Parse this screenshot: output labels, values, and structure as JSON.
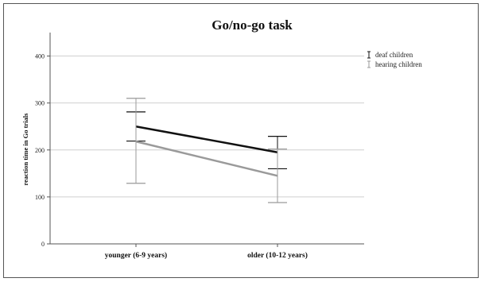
{
  "chart_data": {
    "type": "line",
    "title": "Go/no-go task",
    "xlabel": "",
    "ylabel": "reaction time in Go trials",
    "categories": [
      "younger (6-9 years)",
      "older (10-12 years)"
    ],
    "ylim": [
      0,
      450
    ],
    "yticks": [
      "0",
      "100",
      "200",
      "300",
      "400"
    ],
    "grid": true,
    "legend_position": "top-right",
    "series": [
      {
        "name": "deaf children",
        "color": "#111111",
        "values": [
          250,
          195
        ],
        "error_low": [
          219,
          160
        ],
        "error_high": [
          281,
          229
        ]
      },
      {
        "name": "hearing children",
        "color": "#9a9a9a",
        "values": [
          218,
          145
        ],
        "error_low": [
          129,
          88
        ],
        "error_high": [
          310,
          202
        ]
      }
    ]
  }
}
